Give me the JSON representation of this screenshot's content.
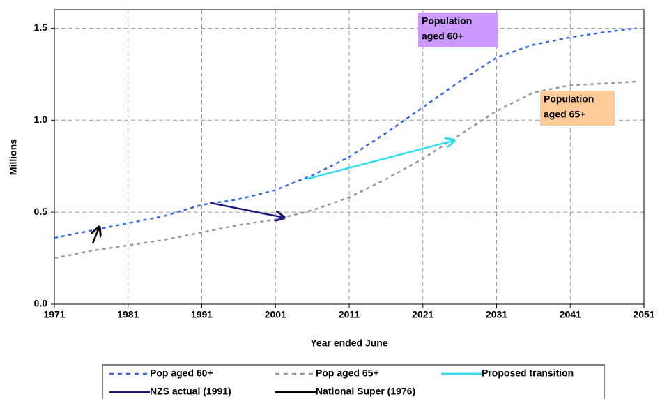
{
  "chart_data": {
    "type": "line",
    "y_label": "Millions",
    "x_label": "Year ended June",
    "xlim": [
      1971,
      2051
    ],
    "xticks": [
      1971,
      1981,
      1991,
      2001,
      2011,
      2021,
      2031,
      2041,
      2051
    ],
    "ylim": [
      0,
      1.6
    ],
    "yticks": [
      {
        "value": 0,
        "label": "0.0"
      },
      {
        "value": 0.5,
        "label": "0.5"
      },
      {
        "value": 1,
        "label": "1.0"
      },
      {
        "value": 1.5,
        "label": "1.5"
      }
    ],
    "grid": true,
    "series": [
      {
        "name": "Pop aged 60+",
        "color": "#3366ee",
        "style": "dashed",
        "x": [
          1971,
          1976,
          1981,
          1986,
          1991,
          1996,
          2001,
          2006,
          2011,
          2016,
          2021,
          2026,
          2031,
          2036,
          2041,
          2046,
          2050
        ],
        "values": [
          0.36,
          0.4,
          0.44,
          0.48,
          0.54,
          0.57,
          0.62,
          0.7,
          0.8,
          0.93,
          1.07,
          1.21,
          1.34,
          1.41,
          1.45,
          1.48,
          1.5
        ]
      },
      {
        "name": "Pop aged 65+",
        "color": "#999999",
        "style": "dashed",
        "x": [
          1971,
          1976,
          1981,
          1986,
          1991,
          1996,
          2001,
          2006,
          2011,
          2016,
          2021,
          2026,
          2031,
          2036,
          2041,
          2046,
          2050
        ],
        "values": [
          0.25,
          0.29,
          0.32,
          0.35,
          0.39,
          0.43,
          0.46,
          0.51,
          0.58,
          0.68,
          0.79,
          0.92,
          1.05,
          1.15,
          1.19,
          1.2,
          1.21
        ]
      },
      {
        "name": "Proposed transition",
        "color": "#33ddee",
        "style": "arrow",
        "x": [
          2005.2,
          2025.3
        ],
        "values": [
          0.68,
          0.89
        ]
      },
      {
        "name": "NZS actual (1991)",
        "color": "#1a1a80",
        "style": "arrow",
        "x": [
          1992.2,
          2002.2
        ],
        "values": [
          0.55,
          0.47
        ]
      },
      {
        "name": "National Super (1976)",
        "color": "#000000",
        "style": "arrow",
        "x": [
          1976.2,
          1977.1
        ],
        "values": [
          0.33,
          0.42
        ]
      }
    ],
    "annotations": [
      {
        "lines": [
          "Population",
          "aged 60+"
        ],
        "color": "#cc99ff"
      },
      {
        "lines": [
          "Population",
          "aged 65+"
        ],
        "color": "#ffcc99"
      }
    ]
  }
}
